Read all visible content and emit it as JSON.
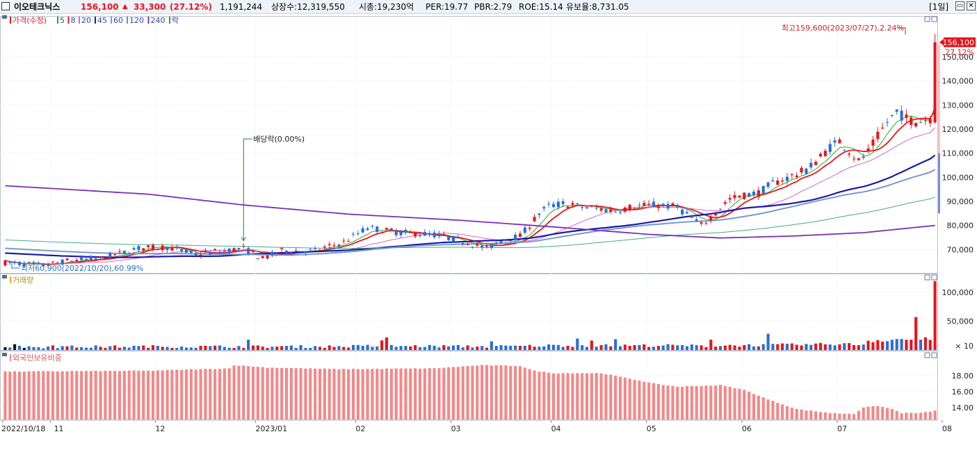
{
  "header": {
    "stock_name": "이오테크닉스",
    "price": "156,100",
    "change_arrow": "▲",
    "change": "33,300",
    "change_pct": "(27.12%)",
    "volume": "1,191,244",
    "listed": "상장수:12,319,550",
    "market_cap": "시총:19,230억",
    "per": "PER:19.77",
    "pbr": "PBR:2.79",
    "roe": "ROE:15.14",
    "float": "유보율:8,731.05",
    "period": "[1일]"
  },
  "colors": {
    "up": "#e8141c",
    "down": "#2a6fd1",
    "ma5": "#22aa22",
    "ma8": "#e8141c",
    "ma20": "#cc66cc",
    "ma45": "#1a1aaa",
    "ma60": "#7799cc",
    "ma120": "#44aa88",
    "ma240": "#7b2fb5",
    "foreign": "#f38888"
  },
  "chart_data": [
    {
      "type": "candlestick",
      "title": "가격(수정)",
      "legend": [
        {
          "label": "가격(수정)",
          "color": "#e8141c"
        },
        {
          "label": "5",
          "color": "#22aa22"
        },
        {
          "label": "8",
          "color": "#e8141c"
        },
        {
          "label": "20",
          "color": "#cc66cc"
        },
        {
          "label": "45",
          "color": "#1a1aaa"
        },
        {
          "label": "60",
          "color": "#7799cc"
        },
        {
          "label": "120",
          "color": "#44aa88"
        },
        {
          "label": "240",
          "color": "#7b2fb5"
        },
        {
          "label": "락",
          "color": "#22aa22"
        }
      ],
      "ylim": [
        60000,
        165000
      ],
      "y_ticks": [
        70000,
        80000,
        90000,
        100000,
        110000,
        120000,
        130000,
        140000,
        150000
      ],
      "y_tick_labels": [
        "70,000",
        "80,000",
        "90,000",
        "100,000",
        "110,000",
        "120,000",
        "130,000",
        "140,000",
        "150,000"
      ],
      "x_tick_labels": [
        "2022/10/18",
        "11",
        "12",
        "2023/01",
        "02",
        "03",
        "04",
        "05",
        "06",
        "07",
        "08"
      ],
      "x_tick_index": [
        0,
        10,
        32,
        53,
        74,
        94,
        115,
        135,
        155,
        175,
        197
      ],
      "num_candles": 196,
      "close_path": [
        [
          0,
          64500
        ],
        [
          8,
          63500
        ],
        [
          14,
          65500
        ],
        [
          20,
          66200
        ],
        [
          28,
          70500
        ],
        [
          34,
          71000
        ],
        [
          40,
          68000
        ],
        [
          50,
          70500
        ],
        [
          54,
          66200
        ],
        [
          58,
          69500
        ],
        [
          65,
          69500
        ],
        [
          71,
          73000
        ],
        [
          76,
          79000
        ],
        [
          83,
          77000
        ],
        [
          90,
          76200
        ],
        [
          96,
          73500
        ],
        [
          101,
          70500
        ],
        [
          105,
          74500
        ],
        [
          108,
          75500
        ],
        [
          110,
          80000
        ],
        [
          112,
          85000
        ],
        [
          114,
          88000
        ],
        [
          117,
          89000
        ],
        [
          120,
          88000
        ],
        [
          124,
          87000
        ],
        [
          128,
          86000
        ],
        [
          132,
          88000
        ],
        [
          137,
          88500
        ],
        [
          141,
          87500
        ],
        [
          144,
          83000
        ],
        [
          146,
          80000
        ],
        [
          148,
          83500
        ],
        [
          150,
          87500
        ],
        [
          152,
          91000
        ],
        [
          155,
          92500
        ],
        [
          158,
          93500
        ],
        [
          161,
          97500
        ],
        [
          165,
          100500
        ],
        [
          168,
          103000
        ],
        [
          170,
          106500
        ],
        [
          173,
          112500
        ],
        [
          175,
          115000
        ],
        [
          177,
          111000
        ],
        [
          179,
          106500
        ],
        [
          181,
          110500
        ],
        [
          183,
          117000
        ],
        [
          185,
          123000
        ],
        [
          187,
          127000
        ],
        [
          189,
          124500
        ],
        [
          191,
          123000
        ],
        [
          193,
          124000
        ],
        [
          194,
          124500
        ],
        [
          195,
          156100
        ]
      ],
      "last_candle": {
        "open": 122800,
        "high": 159600,
        "low": 122300,
        "close": 156100
      },
      "ma_series": [
        {
          "name": "5",
          "period": 5
        },
        {
          "name": "8",
          "period": 8
        },
        {
          "name": "20",
          "period": 20
        },
        {
          "name": "45",
          "period": 45
        },
        {
          "name": "60",
          "period": 60
        },
        {
          "name": "120",
          "period": 120
        },
        {
          "name": "240",
          "period": 240,
          "path": [
            [
              0,
              96500
            ],
            [
              30,
              93000
            ],
            [
              50,
              88500
            ],
            [
              72,
              84700
            ],
            [
              95,
              82200
            ],
            [
              115,
              79400
            ],
            [
              135,
              76300
            ],
            [
              150,
              74800
            ],
            [
              165,
              75600
            ],
            [
              180,
              77000
            ],
            [
              195,
              80000
            ]
          ]
        }
      ],
      "annotations": [
        {
          "text": "최고159,600(2023/07/27),2.24%",
          "index": 195,
          "value": 159600
        },
        {
          "text": "최저60,900(2022/10/20),60.99%",
          "index": 2,
          "value": 60900
        },
        {
          "text": "배당락(0.00%)",
          "index": 50
        }
      ],
      "current_price_label": "156,100",
      "current_pct_label": "27.12%"
    },
    {
      "type": "bar",
      "title": "거래량",
      "ylim": [
        0,
        125000
      ],
      "y_ticks": [
        50000,
        100000
      ],
      "y_tick_labels": [
        "50,000",
        "100,000"
      ],
      "unit_label": "× 10",
      "last_value": 119124
    },
    {
      "type": "bar",
      "title": "외국인보유비중",
      "ylim": [
        12.5,
        20.5
      ],
      "y_ticks": [
        14,
        16,
        18
      ],
      "y_tick_labels": [
        "14.00",
        "16.00",
        "18.00"
      ],
      "path": [
        [
          0,
          18.5
        ],
        [
          30,
          18.6
        ],
        [
          47,
          18.9
        ],
        [
          48,
          19.3
        ],
        [
          55,
          19.0
        ],
        [
          70,
          18.8
        ],
        [
          90,
          18.9
        ],
        [
          100,
          19.3
        ],
        [
          108,
          19.2
        ],
        [
          111,
          18.6
        ],
        [
          115,
          18.3
        ],
        [
          125,
          18.3
        ],
        [
          131,
          17.6
        ],
        [
          137,
          16.9
        ],
        [
          141,
          16.6
        ],
        [
          150,
          16.8
        ],
        [
          155,
          16.2
        ],
        [
          160,
          15.0
        ],
        [
          166,
          13.8
        ],
        [
          173,
          13.3
        ],
        [
          178,
          13.2
        ],
        [
          180,
          14.0
        ],
        [
          183,
          14.2
        ],
        [
          186,
          13.8
        ],
        [
          188,
          13.3
        ],
        [
          192,
          13.3
        ],
        [
          195,
          13.6
        ]
      ]
    }
  ]
}
